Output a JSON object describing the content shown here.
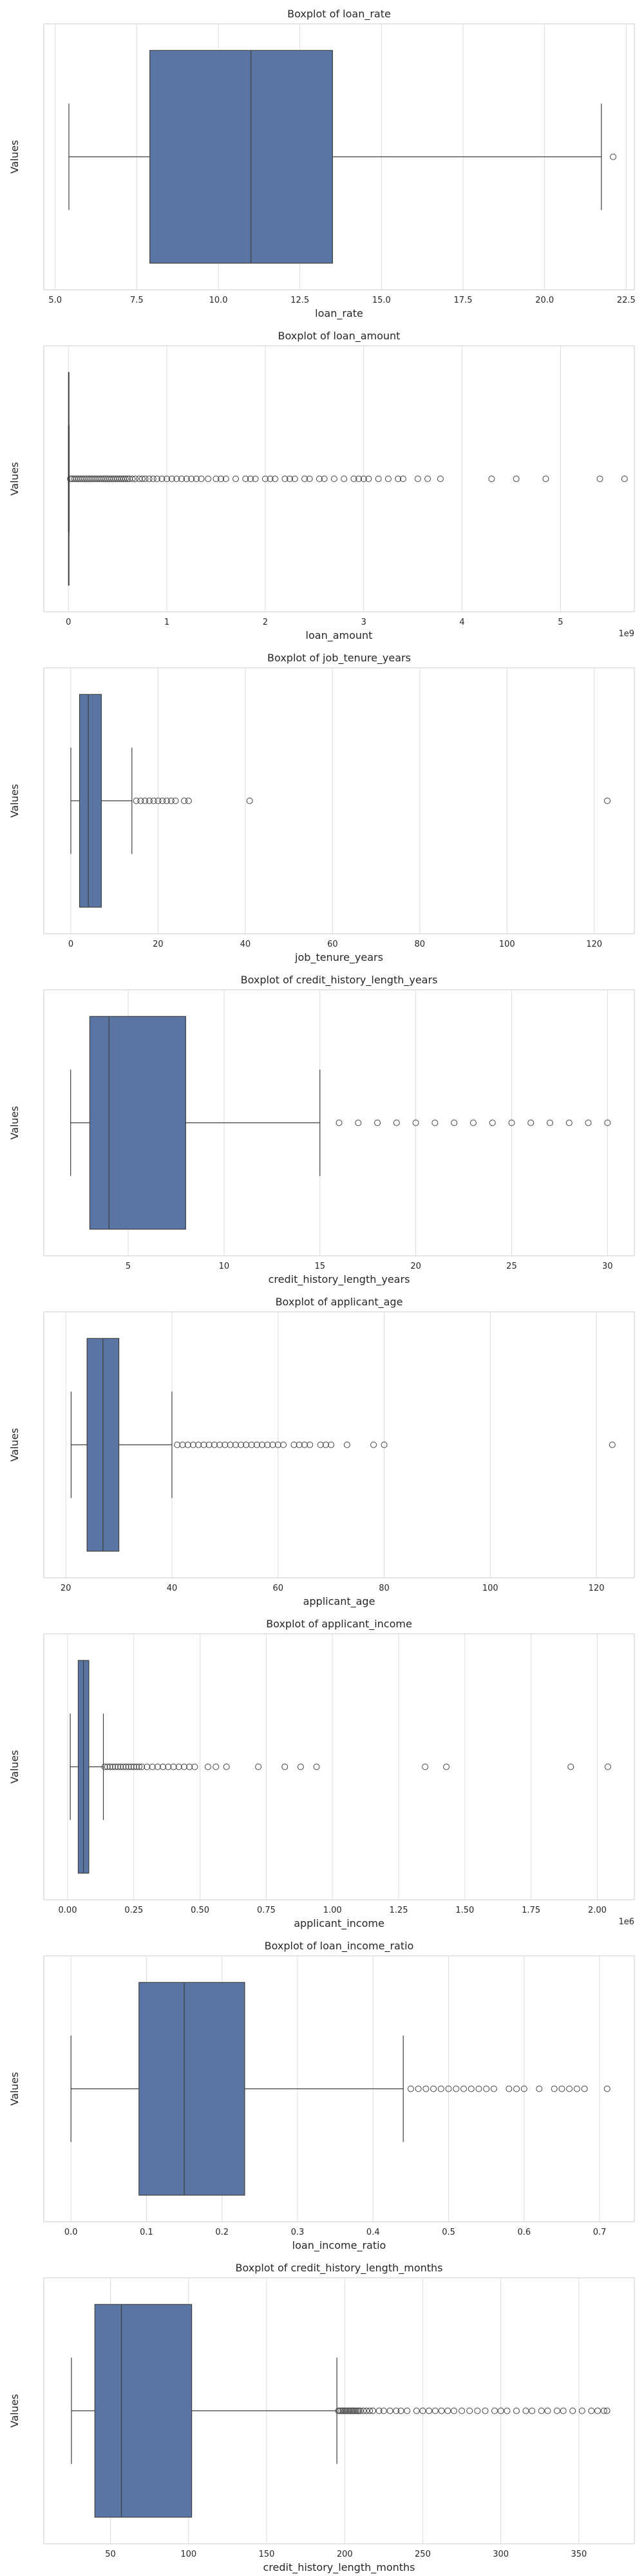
{
  "chart_data": [
    {
      "type": "boxplot",
      "title": "Boxplot of loan_rate",
      "xlabel": "loan_rate",
      "ylabel": "Values",
      "offset_label": "",
      "xlim": [
        4.65,
        22.75
      ],
      "ticks": [
        5.0,
        7.5,
        10.0,
        12.5,
        15.0,
        17.5,
        20.0,
        22.5
      ],
      "tick_labels": [
        "5.0",
        "7.5",
        "10.0",
        "12.5",
        "15.0",
        "17.5",
        "20.0",
        "22.5"
      ],
      "grid": true,
      "stats": {
        "whisker_low": 5.42,
        "q1": 7.9,
        "median": 11.0,
        "q3": 13.5,
        "whisker_high": 21.74
      },
      "outliers": [
        22.1
      ],
      "box_color": "#5875a4"
    },
    {
      "type": "boxplot",
      "title": "Boxplot of loan_amount",
      "xlabel": "loan_amount",
      "ylabel": "Values",
      "offset_label": "1e9",
      "xlim": [
        -0.25,
        5.75
      ],
      "ticks": [
        0,
        1,
        2,
        3,
        4,
        5
      ],
      "tick_labels": [
        "0",
        "1",
        "2",
        "3",
        "4",
        "5"
      ],
      "grid": true,
      "stats": {
        "whisker_low": 0.0,
        "q1": 0.001,
        "median": 0.002,
        "q3": 0.004,
        "whisker_high": 0.008
      },
      "outliers": [
        0.02,
        0.04,
        0.06,
        0.08,
        0.1,
        0.12,
        0.14,
        0.16,
        0.18,
        0.2,
        0.22,
        0.24,
        0.26,
        0.28,
        0.3,
        0.32,
        0.34,
        0.36,
        0.38,
        0.4,
        0.42,
        0.44,
        0.46,
        0.48,
        0.5,
        0.52,
        0.54,
        0.56,
        0.58,
        0.6,
        0.62,
        0.65,
        0.68,
        0.72,
        0.75,
        0.78,
        0.82,
        0.86,
        0.9,
        0.95,
        1.0,
        1.05,
        1.1,
        1.15,
        1.2,
        1.25,
        1.3,
        1.35,
        1.42,
        1.5,
        1.55,
        1.6,
        1.7,
        1.8,
        1.85,
        1.9,
        2.0,
        2.05,
        2.1,
        2.2,
        2.25,
        2.3,
        2.4,
        2.45,
        2.55,
        2.6,
        2.7,
        2.8,
        2.9,
        2.95,
        3.0,
        3.05,
        3.15,
        3.25,
        3.35,
        3.4,
        3.55,
        3.65,
        3.78,
        4.3,
        4.55,
        4.85,
        5.4,
        5.65
      ],
      "box_color": "#5875a4"
    },
    {
      "type": "boxplot",
      "title": "Boxplot of job_tenure_years",
      "xlabel": "job_tenure_years",
      "ylabel": "Values",
      "offset_label": "",
      "xlim": [
        -6.2,
        129.2
      ],
      "ticks": [
        0,
        20,
        40,
        60,
        80,
        100,
        120
      ],
      "tick_labels": [
        "0",
        "20",
        "40",
        "60",
        "80",
        "100",
        "120"
      ],
      "grid": true,
      "stats": {
        "whisker_low": 0.0,
        "q1": 2.0,
        "median": 4.0,
        "q3": 7.0,
        "whisker_high": 14.0
      },
      "outliers": [
        15,
        16,
        17,
        18,
        19,
        20,
        21,
        22,
        23,
        24,
        26,
        27,
        41,
        123
      ],
      "box_color": "#5875a4"
    },
    {
      "type": "boxplot",
      "title": "Boxplot of credit_history_length_years",
      "xlabel": "credit_history_length_years",
      "ylabel": "Values",
      "offset_label": "",
      "xlim": [
        0.6,
        31.4
      ],
      "ticks": [
        5,
        10,
        15,
        20,
        25,
        30
      ],
      "tick_labels": [
        "5",
        "10",
        "15",
        "20",
        "25",
        "30"
      ],
      "grid": true,
      "stats": {
        "whisker_low": 2.0,
        "q1": 3.0,
        "median": 4.0,
        "q3": 8.0,
        "whisker_high": 15.0
      },
      "outliers": [
        16,
        17,
        18,
        19,
        20,
        21,
        22,
        23,
        24,
        25,
        26,
        27,
        28,
        29,
        30
      ],
      "box_color": "#5875a4"
    },
    {
      "type": "boxplot",
      "title": "Boxplot of applicant_age",
      "xlabel": "applicant_age",
      "ylabel": "Values",
      "offset_label": "",
      "xlim": [
        15.85,
        127.15
      ],
      "ticks": [
        20,
        40,
        60,
        80,
        100,
        120
      ],
      "tick_labels": [
        "20",
        "40",
        "60",
        "80",
        "100",
        "120"
      ],
      "grid": true,
      "stats": {
        "whisker_low": 21.0,
        "q1": 24.0,
        "median": 27.0,
        "q3": 30.0,
        "whisker_high": 40.0
      },
      "outliers": [
        41,
        42,
        43,
        44,
        45,
        46,
        47,
        48,
        49,
        50,
        51,
        52,
        53,
        54,
        55,
        56,
        57,
        58,
        59,
        60,
        61,
        63,
        64,
        65,
        66,
        68,
        69,
        70,
        73,
        78,
        80,
        123
      ],
      "box_color": "#5875a4"
    },
    {
      "type": "boxplot",
      "title": "Boxplot of applicant_income",
      "xlabel": "applicant_income",
      "ylabel": "Values",
      "offset_label": "1e6",
      "xlim": [
        -0.09,
        2.14
      ],
      "ticks": [
        0.0,
        0.25,
        0.5,
        0.75,
        1.0,
        1.25,
        1.5,
        1.75,
        2.0
      ],
      "tick_labels": [
        "0.00",
        "0.25",
        "0.50",
        "0.75",
        "1.00",
        "1.25",
        "1.50",
        "1.75",
        "2.00"
      ],
      "grid": true,
      "stats": {
        "whisker_low": 0.01,
        "q1": 0.04,
        "median": 0.06,
        "q3": 0.08,
        "whisker_high": 0.135
      },
      "outliers": [
        0.14,
        0.15,
        0.16,
        0.17,
        0.18,
        0.19,
        0.2,
        0.21,
        0.22,
        0.23,
        0.24,
        0.25,
        0.26,
        0.27,
        0.28,
        0.3,
        0.32,
        0.34,
        0.36,
        0.38,
        0.4,
        0.42,
        0.44,
        0.46,
        0.48,
        0.53,
        0.56,
        0.6,
        0.72,
        0.82,
        0.88,
        0.94,
        1.35,
        1.43,
        1.9,
        2.04
      ],
      "box_color": "#5875a4"
    },
    {
      "type": "boxplot",
      "title": "Boxplot of loan_income_ratio",
      "xlabel": "loan_income_ratio",
      "ylabel": "Values",
      "offset_label": "",
      "xlim": [
        -0.036,
        0.746
      ],
      "ticks": [
        0.0,
        0.1,
        0.2,
        0.3,
        0.4,
        0.5,
        0.6,
        0.7
      ],
      "tick_labels": [
        "0.0",
        "0.1",
        "0.2",
        "0.3",
        "0.4",
        "0.5",
        "0.6",
        "0.7"
      ],
      "grid": true,
      "stats": {
        "whisker_low": 0.0,
        "q1": 0.09,
        "median": 0.15,
        "q3": 0.23,
        "whisker_high": 0.44
      },
      "outliers": [
        0.45,
        0.46,
        0.47,
        0.48,
        0.49,
        0.5,
        0.51,
        0.52,
        0.53,
        0.54,
        0.55,
        0.56,
        0.58,
        0.59,
        0.6,
        0.62,
        0.64,
        0.65,
        0.66,
        0.67,
        0.68,
        0.71
      ],
      "box_color": "#5875a4"
    },
    {
      "type": "boxplot",
      "title": "Boxplot of credit_history_length_months",
      "xlabel": "credit_history_length_months",
      "ylabel": "Values",
      "offset_label": "",
      "xlim": [
        7.3,
        385.5
      ],
      "ticks": [
        50,
        100,
        150,
        200,
        250,
        300,
        350
      ],
      "tick_labels": [
        "50",
        "100",
        "150",
        "200",
        "250",
        "300",
        "350"
      ],
      "grid": true,
      "stats": {
        "whisker_low": 25.0,
        "q1": 40.0,
        "median": 57.0,
        "q3": 102.0,
        "whisker_high": 195.0
      },
      "outliers": [
        196,
        197,
        198,
        199,
        200,
        201,
        202,
        203,
        204,
        205,
        206,
        207,
        208,
        209,
        210,
        212,
        214,
        216,
        218,
        222,
        225,
        229,
        233,
        236,
        240,
        246,
        250,
        254,
        258,
        262,
        266,
        270,
        275,
        280,
        285,
        290,
        296,
        300,
        304,
        310,
        316,
        320,
        326,
        330,
        336,
        340,
        346,
        352,
        358,
        362,
        366,
        368
      ],
      "box_color": "#5875a4"
    }
  ]
}
